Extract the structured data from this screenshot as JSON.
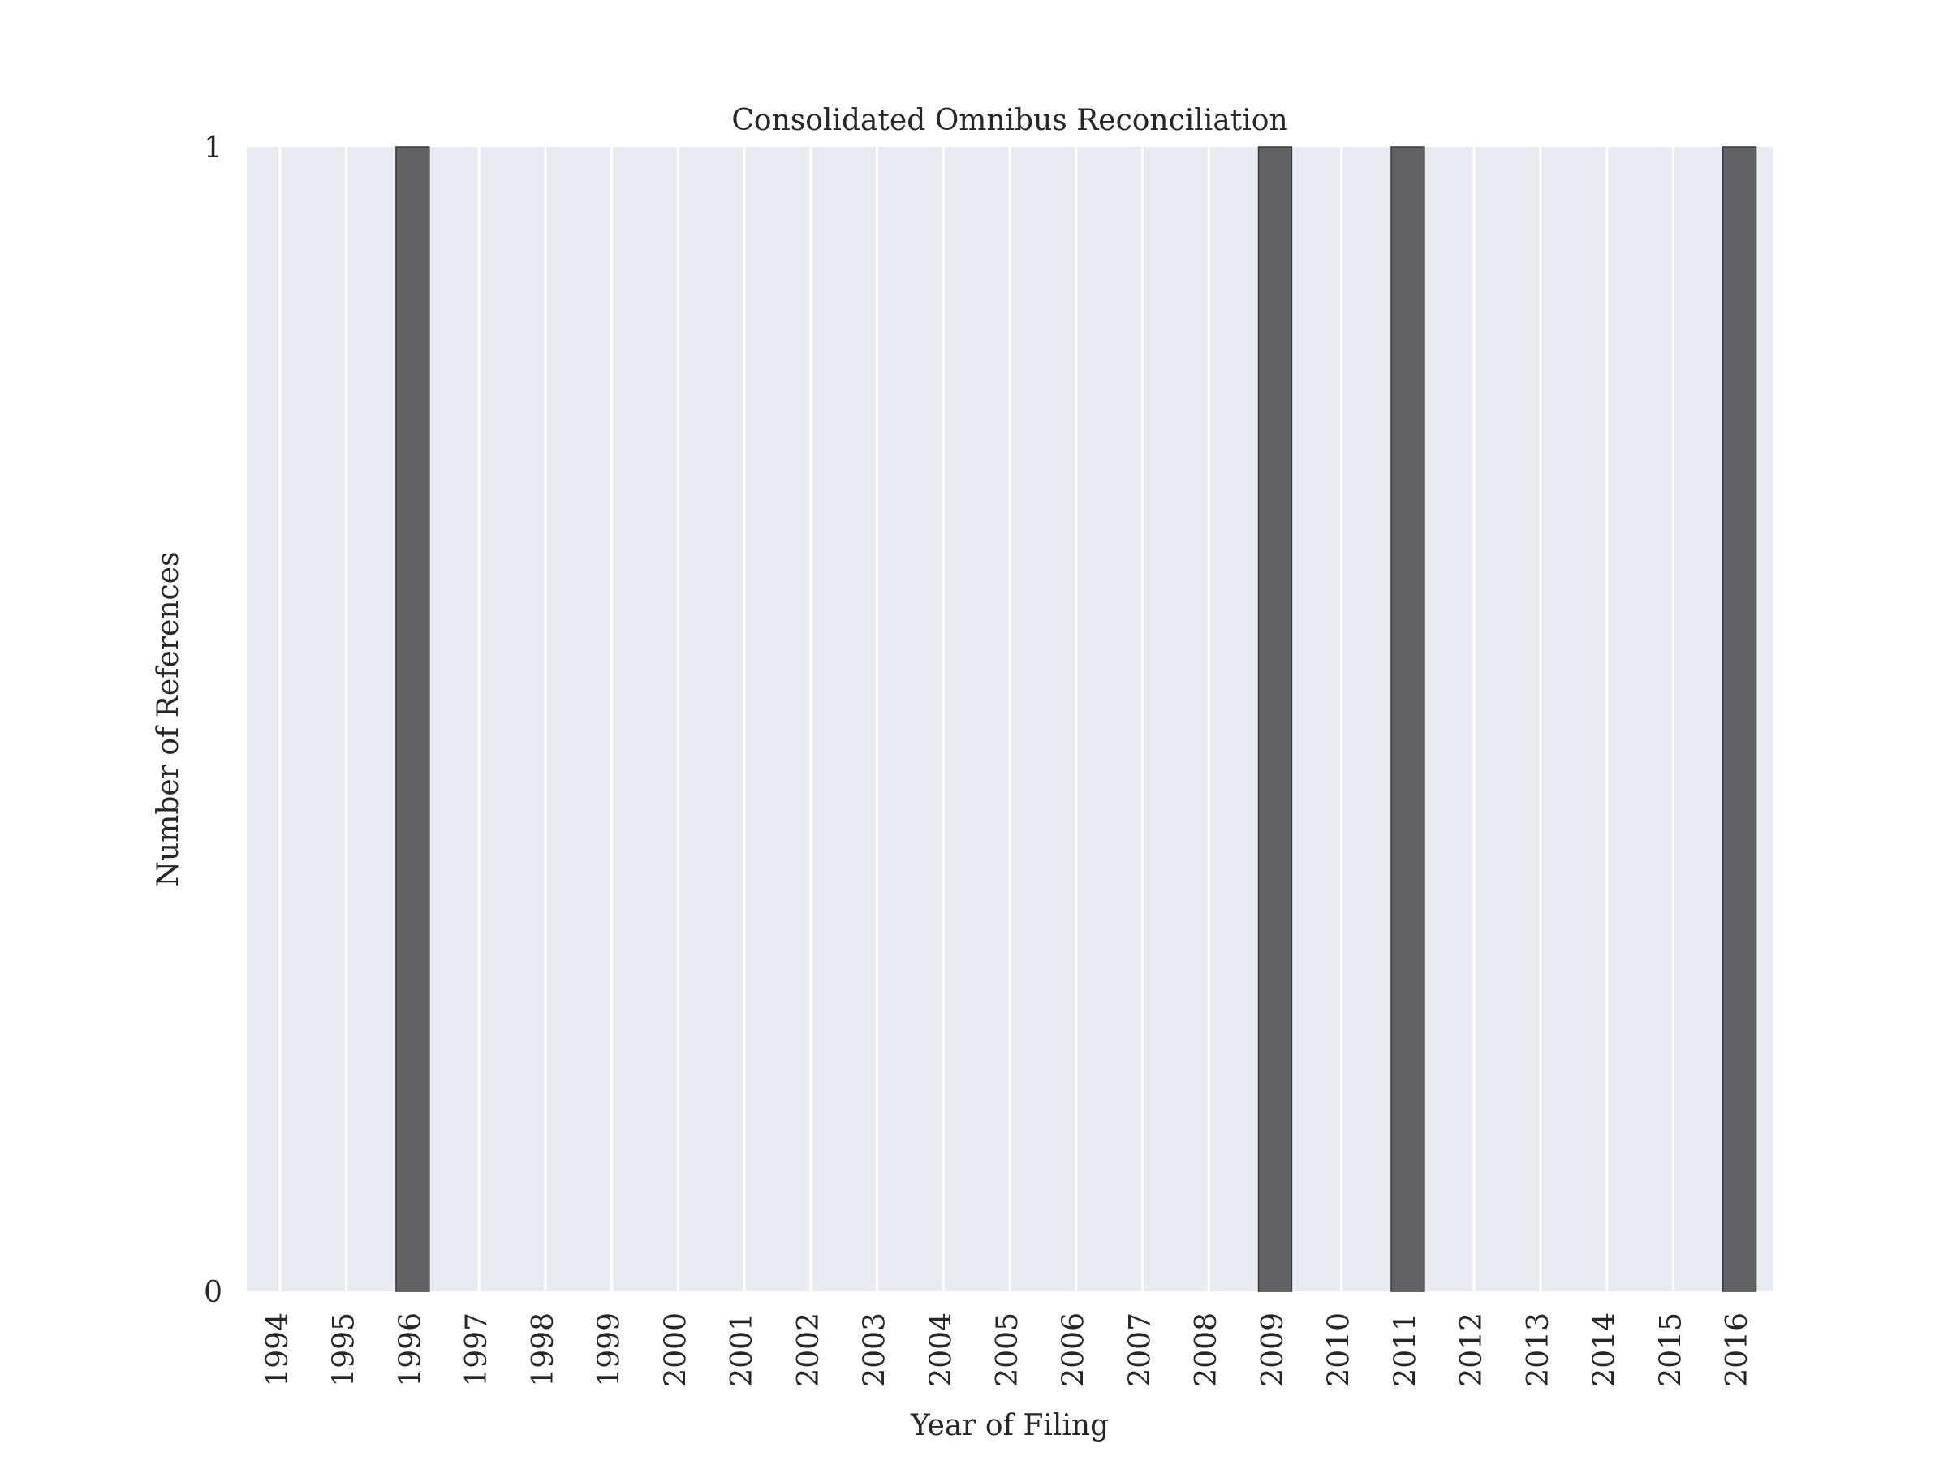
{
  "chart_data": {
    "type": "bar",
    "title": "Consolidated Omnibus Reconciliation",
    "xlabel": "Year of Filing",
    "ylabel": "Number of References",
    "categories": [
      "1994",
      "1995",
      "1996",
      "1997",
      "1998",
      "1999",
      "2000",
      "2001",
      "2002",
      "2003",
      "2004",
      "2005",
      "2006",
      "2007",
      "2008",
      "2009",
      "2010",
      "2011",
      "2012",
      "2013",
      "2014",
      "2015",
      "2016"
    ],
    "values": [
      0,
      0,
      1,
      0,
      0,
      0,
      0,
      0,
      0,
      0,
      0,
      0,
      0,
      0,
      0,
      1,
      0,
      1,
      0,
      0,
      0,
      0,
      1
    ],
    "yticks": [
      "0",
      "1"
    ],
    "ylim": [
      0,
      1
    ],
    "grid": true,
    "legend": "none",
    "colors": {
      "bar": "#626264",
      "bar_edge": "#3a3a3a",
      "plot_background": "#eaeaf2",
      "grid": "#ffffff",
      "text": "#262626"
    }
  }
}
